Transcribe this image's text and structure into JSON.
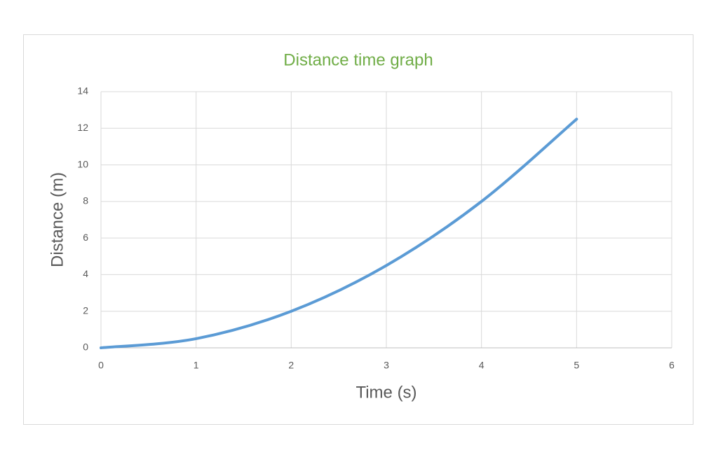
{
  "chart_data": {
    "type": "line",
    "title": "Distance time graph",
    "x_label": "Time (s)",
    "y_label": "Distance (m)",
    "x": [
      0,
      1,
      2,
      3,
      4,
      5
    ],
    "series": [
      {
        "name": "Distance",
        "color": "#5b9bd5",
        "values": [
          0,
          0.5,
          2,
          4.5,
          8,
          12.5
        ]
      }
    ],
    "xlim": [
      0,
      6
    ],
    "xticks": [
      0,
      1,
      2,
      3,
      4,
      5,
      6
    ],
    "ylim": [
      0,
      14
    ],
    "yticks": [
      0,
      2,
      4,
      6,
      8,
      10,
      12,
      14
    ],
    "grid": true,
    "smooth": true
  }
}
